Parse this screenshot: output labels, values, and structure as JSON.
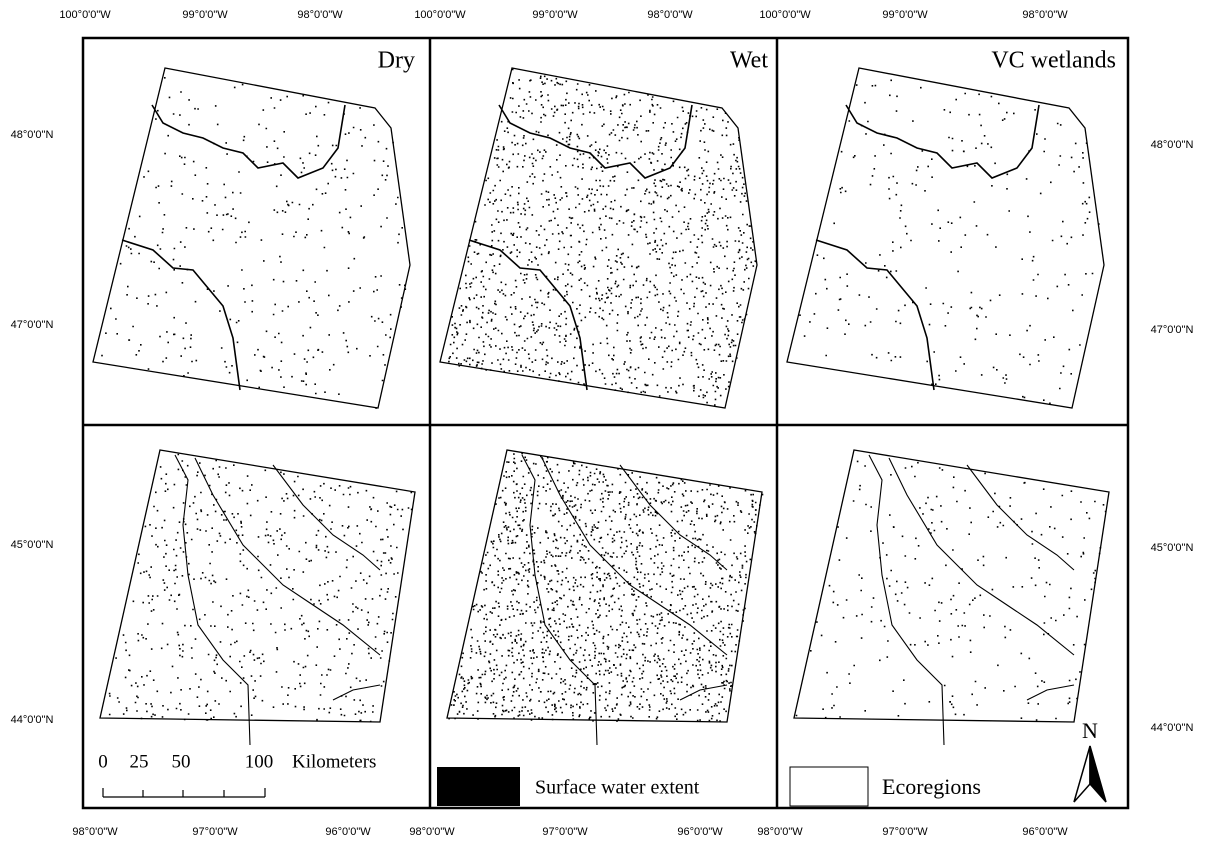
{
  "top_longitude_labels": [
    "100°0'0\"W",
    "99°0'0\"W",
    "98°0'0\"W",
    "100°0'0\"W",
    "99°0'0\"W",
    "98°0'0\"W",
    "100°0'0\"W",
    "99°0'0\"W",
    "98°0'0\"W"
  ],
  "bottom_longitude_labels": [
    "98°0'0\"W",
    "97°0'0\"W",
    "96°0'0\"W",
    "98°0'0\"W",
    "97°0'0\"W",
    "96°0'0\"W",
    "98°0'0\"W",
    "97°0'0\"W",
    "96°0'0\"W"
  ],
  "left_latitude_labels": [
    "48°0'0\"N",
    "47°0'0\"N",
    "45°0'0\"N",
    "44°0'0\"N"
  ],
  "right_latitude_labels": [
    "48°0'0\"N",
    "47°0'0\"N",
    "45°0'0\"N",
    "44°0'0\"N"
  ],
  "panel_titles": [
    "Dry",
    "Wet",
    "VC wetlands"
  ],
  "scale_bar": {
    "ticks": [
      "0",
      "25",
      "50",
      "100"
    ],
    "unit": "Kilometers"
  },
  "legend": {
    "items": [
      "Surface water extent",
      "Ecoregions"
    ]
  },
  "north_arrow": "N"
}
